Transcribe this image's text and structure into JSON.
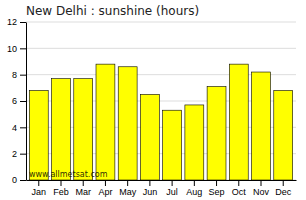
{
  "chart_data": {
    "type": "bar",
    "title": "New Delhi : sunshine (hours)",
    "categories": [
      "Jan",
      "Feb",
      "Mar",
      "Apr",
      "May",
      "Jun",
      "Jul",
      "Aug",
      "Sep",
      "Oct",
      "Nov",
      "Dec"
    ],
    "values": [
      6.8,
      7.7,
      7.7,
      8.8,
      8.6,
      6.5,
      5.3,
      5.7,
      7.1,
      8.8,
      8.2,
      6.8
    ],
    "color": "#FFFF00",
    "ylim": [
      0,
      12
    ],
    "yticks": [
      0,
      2,
      4,
      6,
      8,
      10,
      12
    ],
    "grid": true,
    "annotations": [
      "www.allmetsat.com"
    ]
  }
}
